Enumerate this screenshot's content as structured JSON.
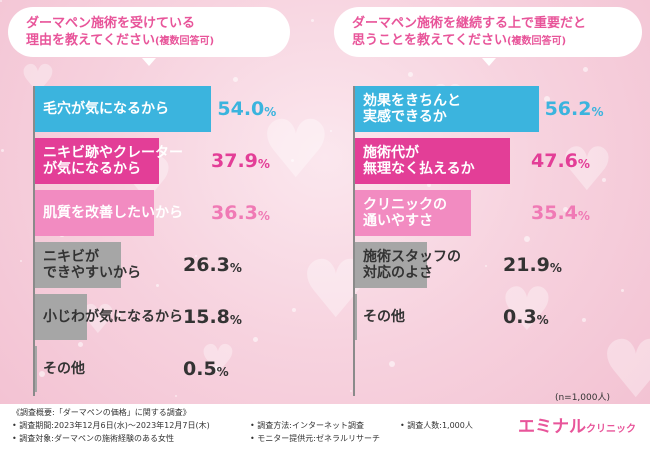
{
  "questions": [
    {
      "line1": "ダーマペン施術を受けている",
      "line2": "理由を教えてください",
      "note": "(複数回答可)"
    },
    {
      "line1": "ダーマペン施術を継続する上で重要だと",
      "line2": "思うことを教えてください",
      "note": "(複数回答可)"
    }
  ],
  "chart_data": [
    {
      "type": "bar",
      "orientation": "horizontal",
      "categories": [
        "毛穴が気になるから",
        "ニキビ跡やクレーター が気になるから",
        "肌質を改善したいから",
        "ニキビが できやすいから",
        "小じわが気になるから",
        "その他"
      ],
      "values": [
        54.0,
        37.9,
        36.3,
        26.3,
        15.8,
        0.5
      ],
      "value_labels": [
        "54.0",
        "37.9",
        "36.3",
        "26.3",
        "15.8",
        "0.5"
      ],
      "unit": "%",
      "colors": [
        "#3bb4de",
        "#e33e97",
        "#f28bc1",
        "#a6a6a6",
        "#a6a6a6",
        "#a6a6a6"
      ],
      "value_colors": [
        "#3bb4de",
        "#e33e97",
        "#f07ab5",
        "#333333",
        "#333333",
        "#333333"
      ]
    },
    {
      "type": "bar",
      "orientation": "horizontal",
      "categories": [
        "効果をきちんと 実感できるか",
        "施術代が 無理なく払えるか",
        "クリニックの 通いやすさ",
        "施術スタッフの 対応のよさ",
        "その他"
      ],
      "values": [
        56.2,
        47.6,
        35.4,
        21.9,
        0.3
      ],
      "value_labels": [
        "56.2",
        "47.6",
        "35.4",
        "21.9",
        "0.3"
      ],
      "unit": "%",
      "colors": [
        "#3bb4de",
        "#e33e97",
        "#f28bc1",
        "#a6a6a6",
        "#a6a6a6"
      ],
      "value_colors": [
        "#3bb4de",
        "#e33e97",
        "#f07ab5",
        "#333333",
        "#333333"
      ]
    }
  ],
  "sample_size": "(n=1,000人)",
  "footer": {
    "summary": "《調査概要:「ダーマペンの価格」に関する調査》",
    "period": "• 調査期間:2023年12月6日(水)～2023年12月7日(木)",
    "target": "• 調査対象:ダーマペンの施術経験のある女性",
    "method": "• 調査方法:インターネット調査",
    "monitor": "• モニター提供元:ゼネラルリサーチ",
    "count": "• 調査人数:1,000人"
  },
  "logo": {
    "main": "エミナル",
    "sub": "クリニック"
  }
}
